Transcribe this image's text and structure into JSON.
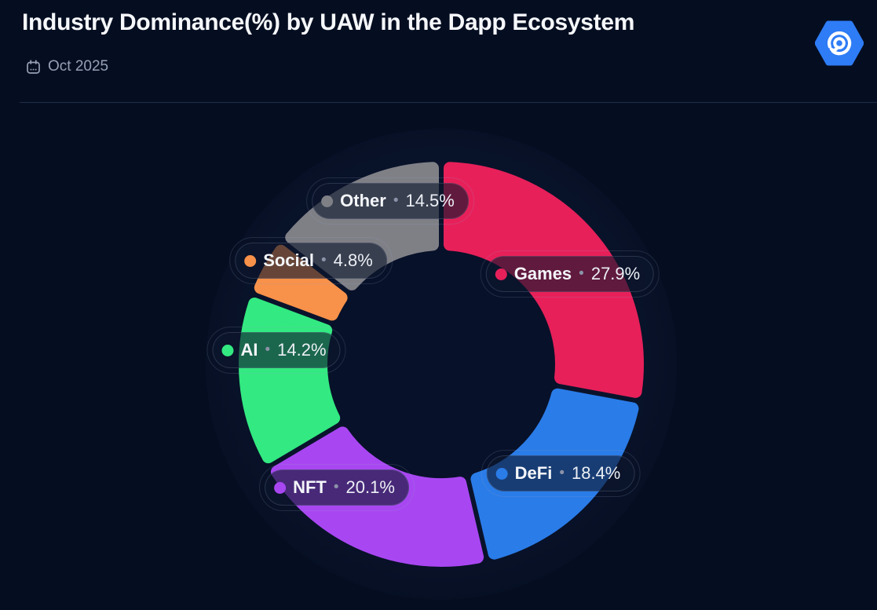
{
  "header": {
    "title": "Industry Dominance(%) by UAW in the Dapp Ecosystem",
    "date": "Oct 2025",
    "calendar_icon": "calendar-icon",
    "logo": "dappradar-logo",
    "logo_color": "#2E7CF6"
  },
  "theme": {
    "background": "#050E21",
    "title_color": "#F5F7FA",
    "date_color": "#96A0B5",
    "divider_color": "#202C47",
    "pill_background": "rgba(13,22,45,0.62)",
    "pill_border": "rgba(148,166,198,0.22)",
    "donut_plate_color": "#0A1630",
    "donut_hole_color": "#071129"
  },
  "chart_data": {
    "type": "pie",
    "variant": "donut",
    "title": "Industry Dominance(%) by UAW in the Dapp Ecosystem",
    "period": "Oct 2025",
    "unit": "%",
    "direction": "clockwise",
    "start_angle_deg": 0,
    "grid": false,
    "legend_position": "on-chart-pills",
    "separator_char": "•",
    "segments": [
      {
        "label": "Games",
        "value": 27.9,
        "display": "27.9%",
        "color": "#E7205A"
      },
      {
        "label": "DeFi",
        "value": 18.4,
        "display": "18.4%",
        "color": "#2A7CE8"
      },
      {
        "label": "NFT",
        "value": 20.1,
        "display": "20.1%",
        "color": "#A847F2"
      },
      {
        "label": "AI",
        "value": 14.2,
        "display": "14.2%",
        "color": "#33E981"
      },
      {
        "label": "Social",
        "value": 4.8,
        "display": "4.8%",
        "color": "#F8914A"
      },
      {
        "label": "Other",
        "value": 14.5,
        "display": "14.5%",
        "color": "#7F8086"
      }
    ]
  }
}
